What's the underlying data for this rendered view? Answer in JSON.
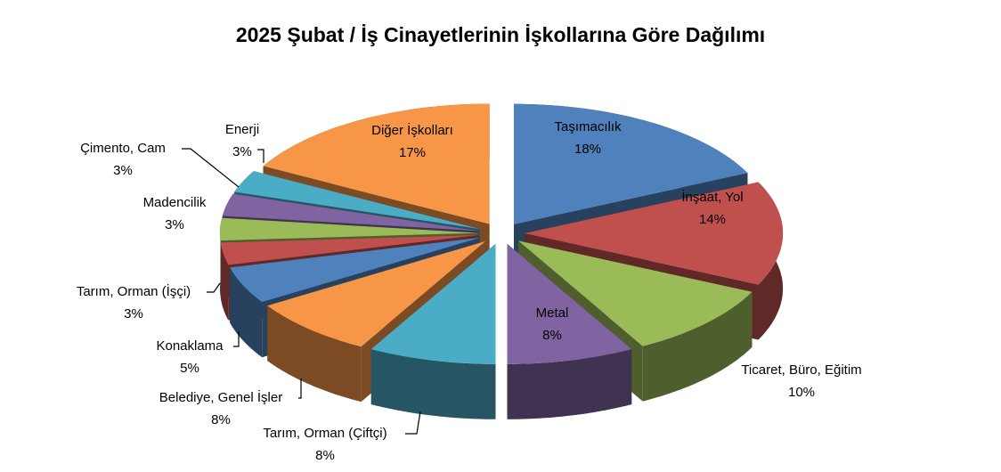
{
  "chart_data": {
    "type": "pie3d",
    "title": "2025 Şubat / İş Cinayetlerinin İşkollarına Göre Dağılımı",
    "categories": [
      "Taşımacılık",
      "İnşaat, Yol",
      "Ticaret, Büro, Eğitim",
      "Metal",
      "Tarım, Orman (Çiftçi)",
      "Belediye, Genel İşler",
      "Konaklama",
      "Tarım, Orman (İşçi)",
      "Madencilik",
      "Çimento, Cam",
      "Enerji",
      "Diğer İşkolları"
    ],
    "values": [
      18,
      14,
      10,
      8,
      8,
      8,
      5,
      3,
      3,
      3,
      3,
      17
    ],
    "value_labels": [
      "18%",
      "14%",
      "10%",
      "8%",
      "8%",
      "8%",
      "5%",
      "3%",
      "3%",
      "3%",
      "3%",
      "17%"
    ],
    "colors": [
      "#4F81BD",
      "#C0504D",
      "#9BBB59",
      "#8064A2",
      "#4BACC6",
      "#F79646",
      "#4F81BD",
      "#C0504D",
      "#9BBB59",
      "#8064A2",
      "#4BACC6",
      "#F79646"
    ]
  }
}
